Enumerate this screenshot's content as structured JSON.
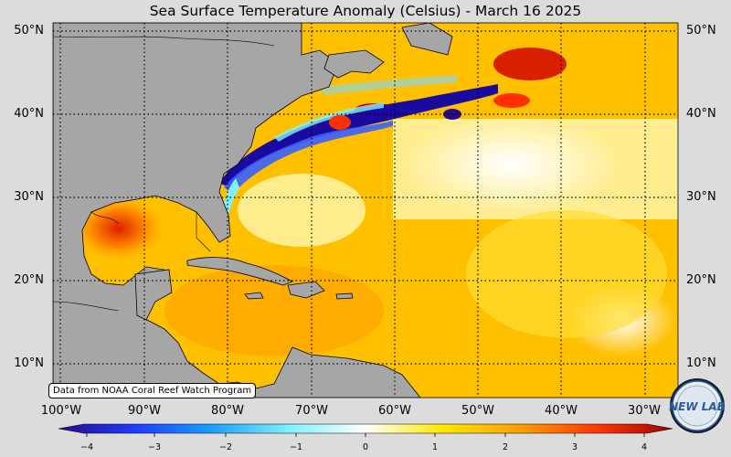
{
  "title": "Sea Surface Temperature Anomaly (Celsius) - March 16 2025",
  "credit": "Data from NOAA Coral Reef Watch Program",
  "logo_text": "NEW LAB",
  "lat_labels": [
    "50°N",
    "40°N",
    "30°N",
    "20°N",
    "10°N"
  ],
  "lon_labels": [
    "100°W",
    "90°W",
    "80°W",
    "70°W",
    "60°W",
    "50°W",
    "40°W",
    "30°W"
  ],
  "colorbar": {
    "ticks": [
      "−4",
      "−3",
      "−2",
      "−1",
      "0",
      "1",
      "2",
      "3",
      "4"
    ],
    "range": [
      -4,
      4
    ],
    "colors": [
      "#2a0a8a",
      "#1e3cff",
      "#1aa0ff",
      "#7ff0ff",
      "#ffffff",
      "#ffe800",
      "#ffa000",
      "#ff3a00",
      "#a00000"
    ]
  },
  "colors": {
    "land": "#a6a6a6",
    "background": "#dcdcdc",
    "cold_anomaly": "#1a0aa0",
    "warm_anomaly": "#e53000"
  }
}
